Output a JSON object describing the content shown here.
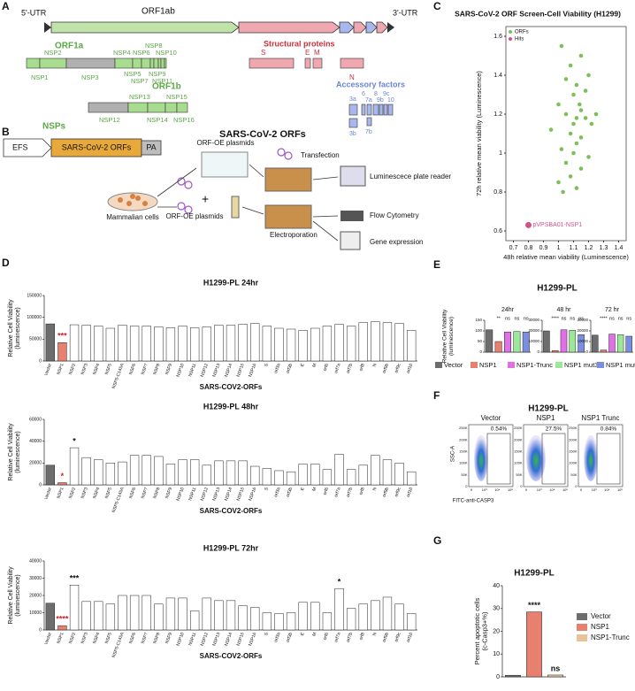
{
  "panel_labels": [
    "A",
    "B",
    "C",
    "D",
    "E",
    "F",
    "G"
  ],
  "diagrams": {
    "A": {
      "utr5": "5'-UTR",
      "orf1ab": "ORF1ab",
      "utr3": "3'-UTR",
      "orf1a": "ORF1a",
      "nsp1a": [
        "NSP1",
        "NSP2",
        "NSP3",
        "NSP4",
        "NSP5",
        "NSP6",
        "NSP7",
        "NSP8",
        "NSP9",
        "NSP10",
        "NSP11"
      ],
      "orf1b": "ORF1b",
      "nsp1b": [
        "NSP12",
        "NSP13",
        "NSP14",
        "NSP15",
        "NSP16"
      ],
      "nsps": "NSPs",
      "structural": "Structural proteins",
      "structural_items": [
        "S",
        "E",
        "M",
        "N"
      ],
      "accessory": "Accessory factors",
      "accessory_items": [
        "3a",
        "3b",
        "6",
        "7a",
        "7b",
        "8",
        "9b",
        "9c",
        "10"
      ],
      "caption": "SARS-CoV-2 ORFs"
    },
    "B": {
      "promoter": "EFS",
      "insert": "SARS-CoV-2 ORFs",
      "polya": "PA",
      "plasmids_top": "ORF-OE plasmids",
      "transfection": "Transfection",
      "reader": "Luminescece plate reader",
      "cells": "Mammalian cells",
      "plasmids_bottom": "ORF-OE plasmids",
      "plus": "+",
      "electroporation": "Electroporation",
      "flow": "Flow Cytometry",
      "gene": "Gene expression"
    },
    "F": {
      "title": "H1299-PL",
      "ylabel": "SSC-A",
      "xlabel": "FITC-anti-CASP3",
      "yticks": [
        "0",
        "50K",
        "100K",
        "150K",
        "200K",
        "250K"
      ],
      "xticks": [
        "0",
        "10³",
        "10⁴",
        "10⁵"
      ],
      "panels": [
        {
          "name": "Vector",
          "percent": "0.54%"
        },
        {
          "name": "NSP1",
          "percent": "27.5%"
        },
        {
          "name": "NSP1 Trunc",
          "percent": "0.84%"
        }
      ]
    }
  },
  "chart_data": [
    {
      "type": "scatter",
      "title": "SARS-CoV-2 ORF Screen-Cell Viability (H1299)",
      "xlabel": "48h relative mean viability (Luminescence)",
      "ylabel": "72h relative mean viability (Luminescence)",
      "xlim": [
        0.65,
        1.45
      ],
      "xticks": [
        0.7,
        0.8,
        0.9,
        1.0,
        1.1,
        1.2,
        1.3,
        1.4
      ],
      "ylim": [
        0.55,
        1.65
      ],
      "yticks": [
        0.6,
        0.8,
        1.0,
        1.2,
        1.4,
        1.6
      ],
      "legend": "upper left",
      "series": [
        {
          "name": "ORFs",
          "color": "#7cc05a",
          "x": [
            1.02,
            1.15,
            1.08,
            1.2,
            1.05,
            1.12,
            1.18,
            1.1,
            1.0,
            1.14,
            1.25,
            1.05,
            1.12,
            1.18,
            1.1,
            1.22,
            0.95,
            1.08,
            1.15,
            1.12,
            1.02,
            1.1,
            1.2,
            1.05,
            1.15,
            1.08,
            1.0,
            1.12,
            1.03,
            1.15
          ],
          "y": [
            1.55,
            1.5,
            1.45,
            1.4,
            1.38,
            1.35,
            1.32,
            1.3,
            1.25,
            1.25,
            1.2,
            1.2,
            1.18,
            1.18,
            1.15,
            1.15,
            1.12,
            1.1,
            1.08,
            1.05,
            1.02,
            1.0,
            0.98,
            0.95,
            0.92,
            0.88,
            0.85,
            0.82,
            0.8,
            1.22
          ]
        },
        {
          "name": "Hits",
          "color": "#d4508a",
          "x": [
            0.8
          ],
          "y": [
            0.63
          ],
          "labels": [
            "pVPSBA01-NSP1"
          ]
        }
      ]
    },
    {
      "type": "bar",
      "title": "H1299-PL 24hr",
      "ylabel": [
        "Relative Cell Viability",
        "(luminescence)"
      ],
      "xlabel": "SARS-COV2-ORFs",
      "categories": [
        "Vector",
        "NSP1",
        "NSP2",
        "NSP3",
        "NSP4",
        "NSP5",
        "NSP5-C145A",
        "NSP6",
        "NSP7",
        "NSP8",
        "NSP9",
        "NSP10",
        "NSP11",
        "NSP12",
        "NSP13",
        "NSP14",
        "NSP15",
        "NSP16",
        "S",
        "orf3a",
        "orf3b",
        "E",
        "M",
        "orf6",
        "orf7a",
        "orf7b",
        "orf8",
        "N",
        "orf9b",
        "orf9c",
        "orf10"
      ],
      "values": [
        85000,
        42000,
        83000,
        82000,
        80000,
        75000,
        82000,
        80000,
        80000,
        78000,
        76000,
        80000,
        76000,
        78000,
        82000,
        82000,
        84000,
        86000,
        80000,
        75000,
        73000,
        70000,
        75000,
        80000,
        84000,
        80000,
        88000,
        90000,
        88000,
        86000,
        70000
      ],
      "color": "#ffffff",
      "highlight": {
        "Vector": "#6d6d6d",
        "NSP1": "#e8806f"
      },
      "rotate_labels": true,
      "ylim": [
        0,
        150000
      ],
      "yticks": [
        0,
        50000,
        100000,
        150000
      ],
      "annotations": [
        {
          "category": "NSP1",
          "text": "***",
          "color": "#d0202a"
        }
      ]
    },
    {
      "type": "bar",
      "title": "H1299-PL 48hr",
      "ylabel": [
        "Relative Cell Viability",
        "(luminescence)"
      ],
      "xlabel": "SARS-COV2-ORFs",
      "categories": [
        "Vector",
        "NSP1",
        "NSP2",
        "NSP3",
        "NSP4",
        "NSP5",
        "NSP5-C145A",
        "NSP6",
        "NSP7",
        "NSP8",
        "NSP9",
        "NSP10",
        "NSP11",
        "NSP12",
        "NSP13",
        "NSP14",
        "NSP15",
        "NSP16",
        "S",
        "orf3a",
        "orf3b",
        "E",
        "M",
        "orf6",
        "orf7a",
        "orf7b",
        "orf8",
        "N",
        "orf9b",
        "orf9c",
        "orf10"
      ],
      "values": [
        18000,
        2000,
        34000,
        25000,
        23000,
        20000,
        21000,
        27000,
        27000,
        26000,
        19000,
        23000,
        23000,
        18000,
        22000,
        22000,
        22000,
        17000,
        15000,
        13000,
        12000,
        19000,
        19000,
        14000,
        28000,
        14000,
        18000,
        27000,
        23000,
        20000,
        12000
      ],
      "color": "#ffffff",
      "highlight": {
        "Vector": "#6d6d6d",
        "NSP1": "#e8806f"
      },
      "rotate_labels": true,
      "ylim": [
        0,
        60000
      ],
      "yticks": [
        0,
        20000,
        40000,
        60000
      ],
      "annotations": [
        {
          "category": "NSP1",
          "text": "*",
          "color": "#d0202a"
        },
        {
          "category": "NSP2",
          "text": "*",
          "color": "#111111"
        }
      ]
    },
    {
      "type": "bar",
      "title": "H1299-PL 72hr",
      "ylabel": [
        "Relative Cell Viability",
        "(luminescence)"
      ],
      "xlabel": "SARS-COV2-ORFs",
      "categories": [
        "Vector",
        "NSP1",
        "NSP2",
        "NSP3",
        "NSP4",
        "NSP5",
        "NSP5-C145A",
        "NSP6",
        "NSP7",
        "NSP8",
        "NSP9",
        "NSP10",
        "NSP11",
        "NSP12",
        "NSP13",
        "NSP14",
        "NSP15",
        "NSP16",
        "S",
        "orf3a",
        "orf3b",
        "E",
        "M",
        "orf6",
        "orf7a",
        "orf7b",
        "orf8",
        "N",
        "orf9b",
        "orf9c",
        "orf10"
      ],
      "values": [
        15500,
        2500,
        26000,
        16500,
        16500,
        15000,
        20000,
        20000,
        20000,
        15000,
        18500,
        18500,
        11000,
        18500,
        17000,
        17000,
        14000,
        13000,
        10000,
        9500,
        10000,
        16000,
        16000,
        10000,
        24000,
        12500,
        15000,
        17000,
        19000,
        15000,
        9500
      ],
      "color": "#ffffff",
      "highlight": {
        "Vector": "#6d6d6d",
        "NSP1": "#e8806f"
      },
      "rotate_labels": true,
      "ylim": [
        0,
        40000
      ],
      "yticks": [
        0,
        10000,
        20000,
        30000,
        40000
      ],
      "annotations": [
        {
          "category": "NSP1",
          "text": "****",
          "color": "#d0202a"
        },
        {
          "category": "NSP2",
          "text": "***",
          "color": "#111111"
        },
        {
          "category": "orf7a",
          "text": "*",
          "color": "#111111"
        }
      ]
    },
    {
      "type": "bar-group",
      "title": "H1299-PL",
      "ylabel": [
        "Relative Cell Viability",
        "(luminescence)"
      ],
      "categories": [
        "Vector",
        "NSP1",
        "NSP1-Trunc",
        "NSP1 mut3",
        "NSP1 mut4"
      ],
      "colors": [
        "#6d6d6d",
        "#e8806f",
        "#e070e6",
        "#9be89b",
        "#7a8fe0"
      ],
      "legend": "bottom",
      "panels": [
        {
          "title": "24hr",
          "ylim": [
            0,
            150
          ],
          "yticks": [
            0,
            50,
            100,
            150
          ],
          "values": [
            105,
            50,
            95,
            97,
            95
          ],
          "annotations": [
            "",
            "**",
            "ns",
            "ns",
            "ns"
          ]
        },
        {
          "title": "48 hr",
          "ylim": [
            0,
            30000
          ],
          "yticks": [
            0,
            10000,
            20000,
            30000
          ],
          "values": [
            20000,
            1500,
            21000,
            20500,
            16500
          ],
          "annotations": [
            "",
            "****",
            "ns",
            "ns",
            "ns"
          ]
        },
        {
          "title": "72 hr",
          "ylim": [
            0,
            30000
          ],
          "yticks": [
            0,
            10000,
            20000,
            30000
          ],
          "values": [
            16000,
            2000,
            17000,
            16500,
            15000
          ],
          "annotations": [
            "",
            "****",
            "ns",
            "ns",
            "ns"
          ]
        }
      ]
    },
    {
      "type": "bar",
      "title": "H1299-PL",
      "ylabel": [
        "Percent apoptotic cells",
        "(c-Casp3+%)"
      ],
      "categories": [
        "Vector",
        "NSP1",
        "NSP1-Trunc"
      ],
      "values": [
        0.7,
        28.5,
        0.8
      ],
      "colors": [
        "#6d6d6d",
        "#e8806f",
        "#e8c39a"
      ],
      "legend": "right",
      "ylim": [
        0,
        40
      ],
      "yticks": [
        0,
        10,
        20,
        30,
        40
      ],
      "annotations": [
        {
          "category": "NSP1",
          "text": "****",
          "color": "#111111"
        },
        {
          "category": "NSP1-Trunc",
          "text": "ns",
          "color": "#111111"
        }
      ]
    }
  ]
}
